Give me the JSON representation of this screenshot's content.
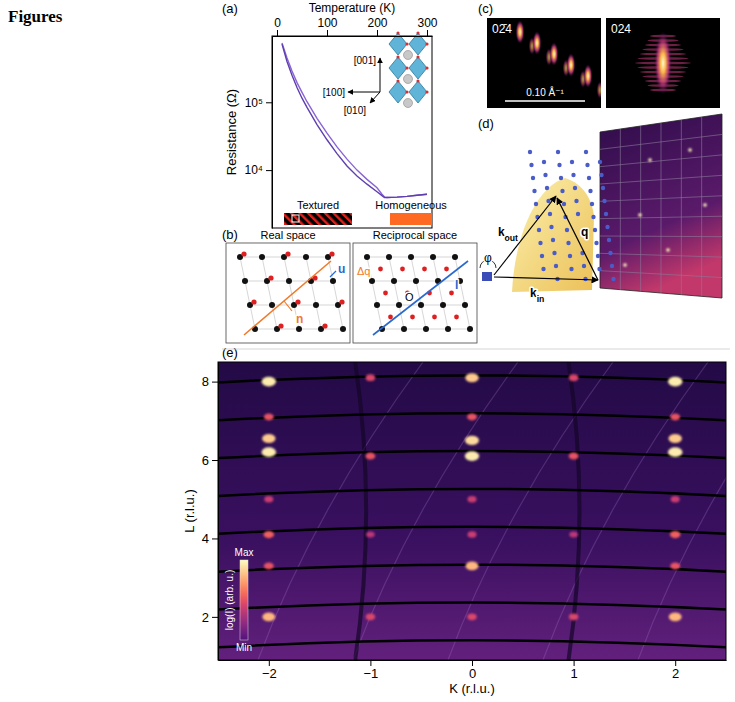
{
  "heading": "Figures",
  "panel_labels": [
    "(a)",
    "(b)",
    "(c)",
    "(d)",
    "(e)"
  ],
  "chart_data": [
    {
      "type": "line",
      "xlabel": "Temperature (K)",
      "ylabel": "Resistance (Ω)",
      "log": "y",
      "x": [
        10,
        20,
        30,
        40,
        50,
        60,
        80,
        100,
        120,
        140,
        160,
        180,
        200,
        210,
        215,
        220,
        240,
        260,
        280,
        300
      ],
      "series": [
        {
          "color": "#8a64d6",
          "values": [
            750000,
            450000,
            290000,
            195000,
            140000,
            102000,
            58000,
            35000,
            22000,
            14500,
            10000,
            7300,
            5500,
            4400,
            4000,
            3950,
            4000,
            4100,
            4250,
            4400
          ]
        },
        {
          "color": "#5e3fae",
          "values": [
            720000,
            400000,
            250000,
            165000,
            115000,
            84000,
            47000,
            28000,
            17500,
            11500,
            8200,
            6200,
            4800,
            4200,
            3950,
            3950,
            4000,
            4100,
            4250,
            4400
          ]
        }
      ],
      "xlim": [
        -10,
        310
      ],
      "xticks": [
        0,
        100,
        200,
        300
      ],
      "ylim": [
        1400,
        950000
      ],
      "yticks": [
        {
          "value": 100000,
          "label": "10⁵"
        },
        {
          "value": 10000,
          "label": "10⁴"
        }
      ],
      "annotations": [
        "[001]",
        "[100]",
        "[010]",
        "Textured",
        "Homogeneous"
      ]
    },
    {
      "type": "heatmap",
      "xlabel": "K (r.l.u.)",
      "ylabel": "L (r.l.u.)",
      "xlim": [
        -2.5,
        2.5
      ],
      "xticks": [
        {
          "value": -2,
          "label": "−2"
        },
        {
          "value": -1,
          "label": "−1"
        },
        0,
        1,
        2
      ],
      "ylim": [
        0.9,
        8.5
      ],
      "yticks": [
        2,
        4,
        6,
        8
      ],
      "peaks": {
        "K": [
          -2,
          -2,
          -2,
          -2,
          -2,
          -2,
          -2,
          -2,
          0,
          0,
          0,
          0,
          0,
          0,
          0,
          0,
          2,
          2,
          2,
          2,
          2,
          2,
          2,
          2,
          -1,
          -1,
          -1,
          -1,
          1,
          1,
          1,
          1
        ],
        "L": [
          2,
          3.3,
          4.1,
          5,
          6.2,
          6.55,
          7.1,
          8,
          2,
          3.3,
          4.1,
          5,
          6.1,
          6.5,
          7.1,
          8.1,
          2,
          3.3,
          4.1,
          5,
          6.2,
          6.55,
          7.1,
          8,
          2,
          4.1,
          6.1,
          8.1,
          2,
          4.1,
          6.1,
          8.1
        ],
        "intensity": [
          0.8,
          0.5,
          0.55,
          0.4,
          0.95,
          0.85,
          0.5,
          0.95,
          0.45,
          0.8,
          0.4,
          0.4,
          0.95,
          0.9,
          0.5,
          0.85,
          0.8,
          0.5,
          0.55,
          0.4,
          0.95,
          0.85,
          0.5,
          0.95,
          0.45,
          0.35,
          0.5,
          0.45,
          0.45,
          0.35,
          0.5,
          0.45
        ]
      },
      "clim": [
        0,
        1
      ],
      "cticks": [
        {
          "value": 0,
          "label": "Min"
        },
        {
          "value": 1,
          "label": "Max"
        }
      ],
      "clabel": "log(I) (arb. u.)"
    }
  ],
  "panel_b": {
    "titles": [
      "Real space",
      "Reciprocal space"
    ],
    "real_labels": [
      "u",
      "n"
    ],
    "reciprocal_labels": [
      "Δq",
      "l",
      "O"
    ]
  },
  "panel_c": {
    "labels": [
      "02̄4",
      "024"
    ],
    "scale_bar": "0.10 Å⁻¹"
  },
  "panel_d": {
    "labels": [
      "φ",
      "kout",
      "kin",
      "q"
    ]
  }
}
